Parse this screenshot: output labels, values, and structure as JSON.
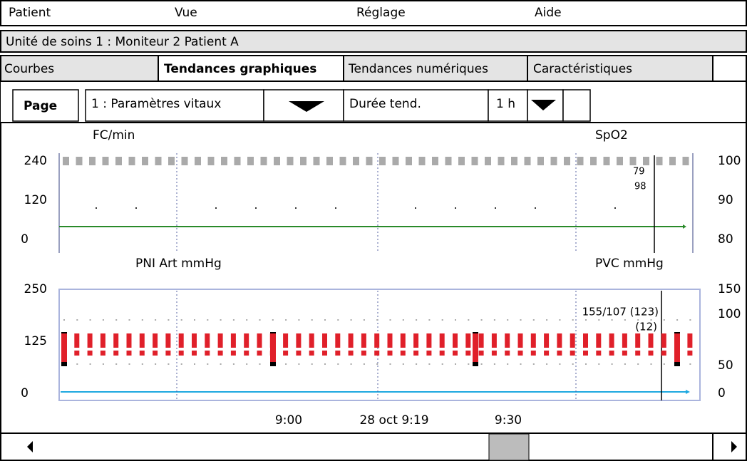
{
  "menu": [
    "Patient",
    "Vue",
    "Réglage",
    "Aide"
  ],
  "location": "Unité de soins 1 : Moniteur 2 Patient A",
  "tabs": [
    "Courbes",
    "Tendances graphiques",
    "Tendances numériques",
    "Caractéristiques"
  ],
  "controls": {
    "page_label": "Page",
    "page_value": "1 : Paramètres vitaux",
    "duration_label": "Durée tend.",
    "duration_value": "1 h"
  },
  "top_plot": {
    "left_label": "FC/min",
    "right_label": "SpO2",
    "left_ticks": [
      "240",
      "120",
      "0"
    ],
    "right_ticks": [
      "100",
      "90",
      "80"
    ],
    "readings": [
      "79",
      "98"
    ]
  },
  "bottom_plot": {
    "left_label": "PNI Art mmHg",
    "right_label": "PVC mmHg",
    "left_ticks": [
      "250",
      "125",
      "0"
    ],
    "right_ticks": [
      "150",
      "100",
      "50",
      "0"
    ],
    "readings": [
      "155/107 (123)",
      "(12)"
    ]
  },
  "time_labels": [
    "9:00",
    "28 oct 9:19",
    "9:30"
  ]
}
